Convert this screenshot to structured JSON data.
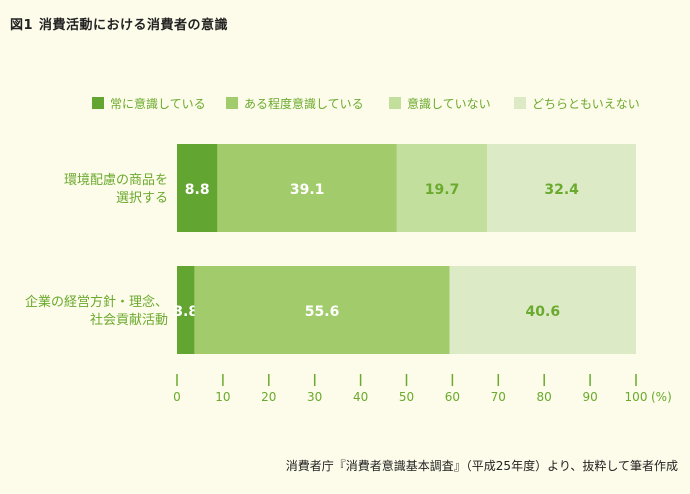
{
  "figure": {
    "number": "図1",
    "title": "消費活動における消費者の意識"
  },
  "source": "消費者庁『消費者意識基本調査』（平成25年度）より、抜粋して筆者作成",
  "chart_data": {
    "type": "bar",
    "orientation": "horizontal",
    "stacked": true,
    "title": "",
    "categories": [
      [
        "環境配慮の商品を",
        "選択する"
      ],
      [
        "企業の経営方針・理念、",
        "社会貢献活動"
      ]
    ],
    "series": [
      {
        "name": "常に意識している",
        "color": "#63a531",
        "label_color": "#ffffff",
        "values": [
          8.8,
          3.8
        ]
      },
      {
        "name": "ある程度意識している",
        "color": "#a2cc6b",
        "label_color": "#ffffff",
        "values": [
          39.1,
          55.6
        ]
      },
      {
        "name": "意識していない",
        "color": "#c3df9e",
        "label_color": "#6aaa2e",
        "values": [
          19.7,
          null
        ]
      },
      {
        "name": "どちらともいえない",
        "color": "#dcebc6",
        "label_color": "#6aaa2e",
        "values": [
          32.4,
          40.6
        ]
      }
    ],
    "xlim": [
      0,
      100
    ],
    "xticks": [
      "0",
      "10",
      "20",
      "30",
      "40",
      "50",
      "60",
      "70",
      "80",
      "90",
      "100"
    ],
    "xunit": "(%)",
    "legend_position": "top",
    "grid": false,
    "accent_color": "#6aaa2e"
  }
}
